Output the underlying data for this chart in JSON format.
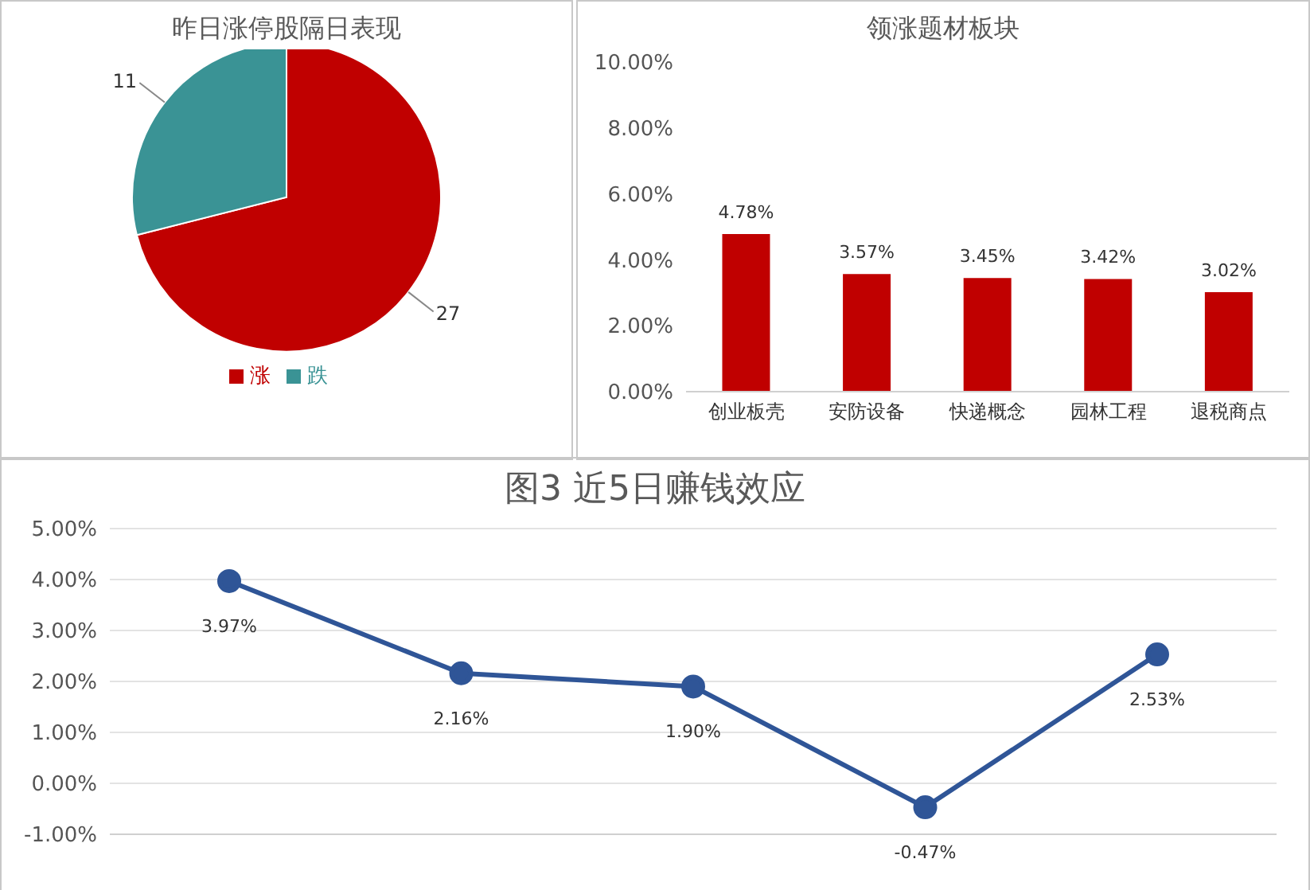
{
  "chart_data": [
    {
      "type": "pie",
      "title": "昨日涨停股隔日表现",
      "categories": [
        "涨",
        "跌"
      ],
      "values": [
        27,
        11
      ],
      "colors": [
        "#c00000",
        "#3a9395"
      ],
      "data_labels": true,
      "legend": "bottom"
    },
    {
      "type": "bar",
      "title": "领涨题材板块",
      "categories": [
        "创业板壳",
        "安防设备",
        "快递概念",
        "园林工程",
        "退税商点"
      ],
      "values": [
        4.78,
        3.57,
        3.45,
        3.42,
        3.02
      ],
      "color": "#c00000",
      "value_labels": [
        "4.78%",
        "3.57%",
        "3.45%",
        "3.42%",
        "3.02%"
      ],
      "ylim": [
        0,
        10
      ],
      "yticks": [
        {
          "value": 0,
          "label": "0.00%"
        },
        {
          "value": 2,
          "label": "2.00%"
        },
        {
          "value": 4,
          "label": "4.00%"
        },
        {
          "value": 6,
          "label": "6.00%"
        },
        {
          "value": 8,
          "label": "8.00%"
        },
        {
          "value": 10,
          "label": "10.00%"
        }
      ]
    },
    {
      "type": "line",
      "title": "图3 近5日赚钱效应",
      "categories": [
        null,
        null,
        null,
        null,
        null
      ],
      "values": [
        3.97,
        2.16,
        1.9,
        -0.47,
        2.53
      ],
      "color": "#2f5597",
      "marker": "circle",
      "grid": "y",
      "value_labels": [
        "3.97%",
        "2.16%",
        "1.90%",
        "-0.47%",
        "2.53%"
      ],
      "ylim": [
        -1,
        5
      ],
      "yticks": [
        {
          "value": -1,
          "label": "-1.00%"
        },
        {
          "value": 0,
          "label": "0.00%"
        },
        {
          "value": 1,
          "label": "1.00%"
        },
        {
          "value": 2,
          "label": "2.00%"
        },
        {
          "value": 3,
          "label": "3.00%"
        },
        {
          "value": 4,
          "label": "4.00%"
        },
        {
          "value": 5,
          "label": "5.00%"
        }
      ]
    }
  ]
}
